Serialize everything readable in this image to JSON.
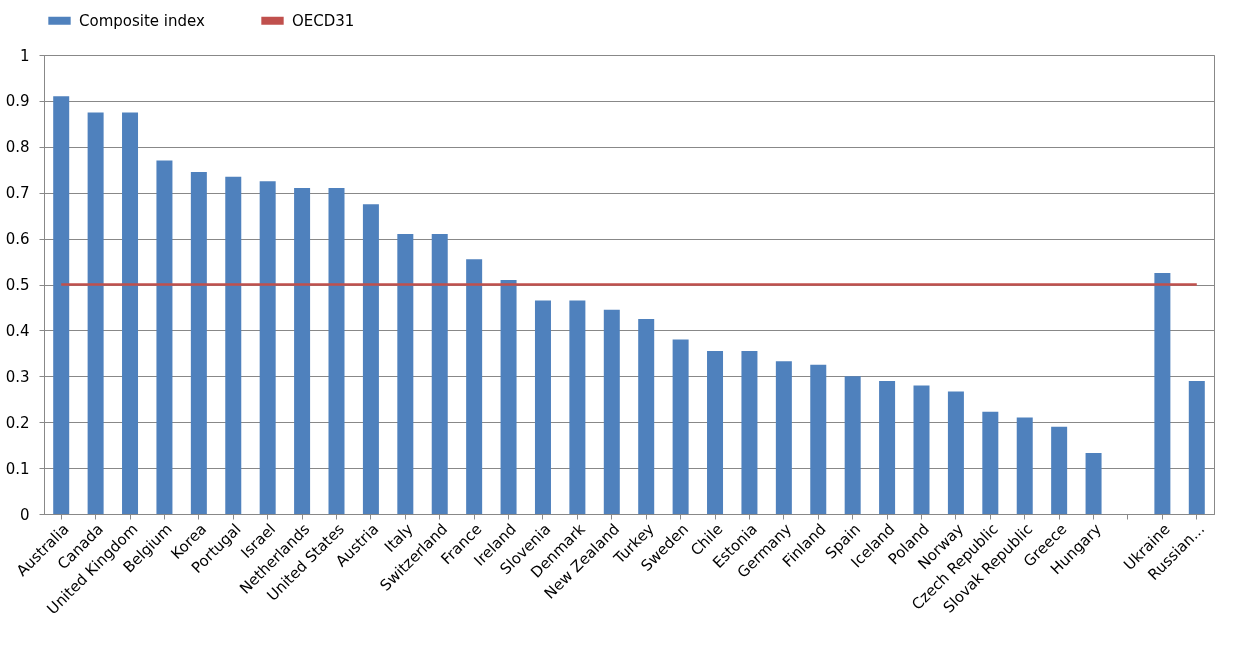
{
  "chart_data": {
    "type": "bar",
    "categories": [
      "Australia",
      "Canada",
      "United Kingdom",
      "Belgium",
      "Korea",
      "Portugal",
      "Israel",
      "Netherlands",
      "United States",
      "Austria",
      "Italy",
      "Switzerland",
      "France",
      "Ireland",
      "Slovenia",
      "Denmark",
      "New Zealand",
      "Turkey",
      "Sweden",
      "Chile",
      "Estonia",
      "Germany",
      "Finland",
      "Spain",
      "Iceland",
      "Poland",
      "Norway",
      "Czech Republic",
      "Slovak Republic",
      "Greece",
      "Hungary",
      null,
      "Ukraine",
      "Russian..."
    ],
    "series": [
      {
        "name": "Composite index",
        "color": "#4f81bd",
        "values": [
          0.91,
          0.875,
          0.875,
          0.77,
          0.745,
          0.735,
          0.725,
          0.71,
          0.71,
          0.675,
          0.61,
          0.61,
          0.555,
          0.51,
          0.465,
          0.465,
          0.445,
          0.425,
          0.38,
          0.355,
          0.355,
          0.333,
          0.325,
          0.3,
          0.29,
          0.28,
          0.267,
          0.223,
          0.21,
          0.19,
          0.133,
          null,
          0.525,
          0.29
        ]
      },
      {
        "name": "OECD31",
        "type": "line",
        "color": "#c0504d",
        "values": [
          0.5,
          0.5,
          0.5,
          0.5,
          0.5,
          0.5,
          0.5,
          0.5,
          0.5,
          0.5,
          0.5,
          0.5,
          0.5,
          0.5,
          0.5,
          0.5,
          0.5,
          0.5,
          0.5,
          0.5,
          0.5,
          0.5,
          0.5,
          0.5,
          0.5,
          0.5,
          0.5,
          0.5,
          0.5,
          0.5,
          0.5,
          0.5,
          0.5,
          0.5
        ]
      }
    ],
    "ylim": [
      0,
      1
    ],
    "yticks": [
      0,
      0.1,
      0.2,
      0.3,
      0.4,
      0.5,
      0.6,
      0.7,
      0.8,
      0.9,
      1
    ],
    "grid": "y",
    "legend": "top"
  }
}
